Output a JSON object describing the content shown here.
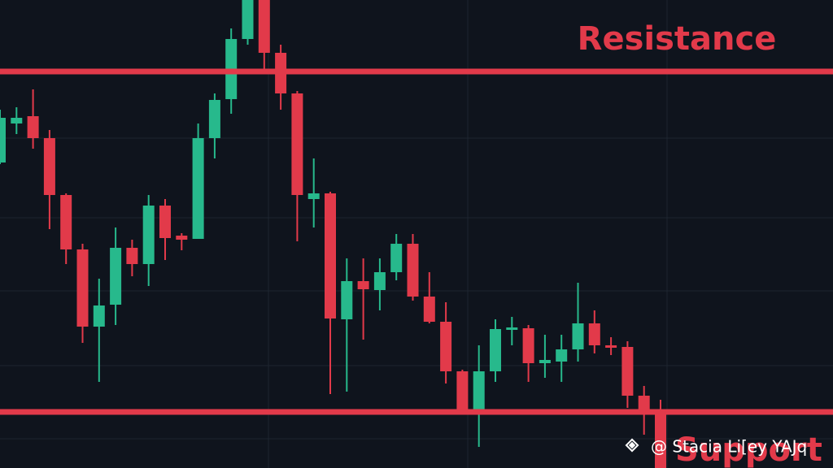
{
  "chart_data": {
    "type": "candlestick",
    "ylim": [
      0,
      576
    ],
    "up_color": "#27b98c",
    "down_color": "#e23a4a",
    "open": [
      376,
      424,
      433,
      406,
      336,
      269,
      174,
      201,
      271,
      251,
      323,
      286,
      282,
      406,
      454,
      528,
      586,
      511,
      461,
      331,
      338,
      183,
      230,
      219,
      241,
      276,
      211,
      180,
      119,
      71,
      119,
      170,
      172,
      129,
      131,
      146,
      178,
      151,
      149,
      89,
      71
    ],
    "high": [
      441,
      444,
      466,
      416,
      338,
      276,
      233,
      296,
      281,
      336,
      331,
      289,
      424,
      461,
      541,
      596,
      596,
      521,
      464,
      381,
      340,
      258,
      258,
      258,
      288,
      288,
      241,
      204,
      121,
      151,
      183,
      186,
      176,
      164,
      164,
      228,
      194,
      161,
      156,
      101,
      84
    ],
    "low": [
      374,
      411,
      393,
      294,
      251,
      154,
      106,
      176,
      236,
      224,
      256,
      268,
      282,
      381,
      436,
      521,
      486,
      441,
      279,
      296,
      91,
      94,
      158,
      194,
      231,
      206,
      178,
      104,
      66,
      26,
      106,
      151,
      106,
      111,
      106,
      131,
      141,
      139,
      74,
      41,
      -10
    ],
    "close": [
      431,
      431,
      406,
      336,
      269,
      174,
      200,
      271,
      251,
      323,
      283,
      281,
      406,
      453,
      528,
      586,
      511,
      461,
      336,
      338,
      184,
      230,
      220,
      241,
      276,
      211,
      180,
      119,
      71,
      119,
      171,
      173,
      129,
      133,
      146,
      178,
      151,
      148,
      89,
      71,
      -10
    ],
    "resistance": {
      "label": "Resistance",
      "value": 488
    },
    "support": {
      "label": "Support",
      "value": 69
    }
  },
  "watermark": "@ Stacia Li[ey YAJq"
}
